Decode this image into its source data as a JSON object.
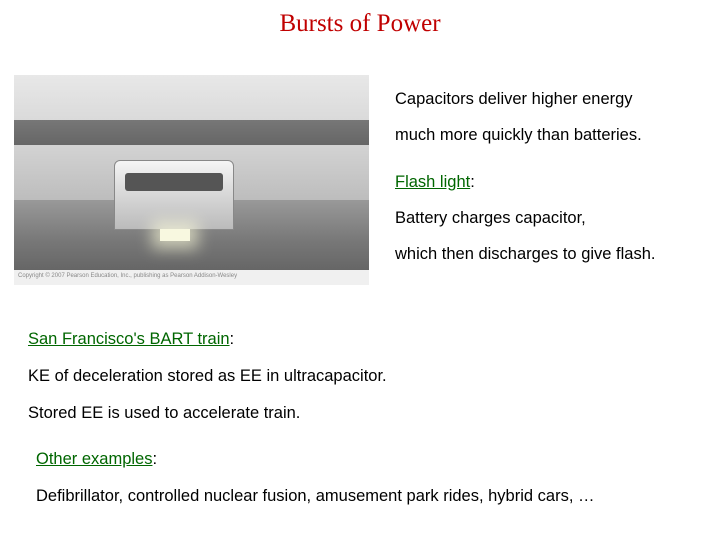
{
  "title": {
    "text": "Bursts  of  Power",
    "color": "#c00000"
  },
  "image": {
    "copyright": "Copyright © 2007 Pearson Education, Inc., publishing as Pearson Addison-Wesley"
  },
  "right": {
    "line1": "Capacitors deliver higher energy",
    "line2": "much more quickly than batteries.",
    "flash_label": "Flash light",
    "flash_color": "#006600",
    "line3": "Battery charges capacitor,",
    "line4": "which then discharges to give flash."
  },
  "bart": {
    "label": "San Francisco's BART train",
    "label_color": "#006600",
    "line1": "KE of deceleration stored as EE in ultracapacitor.",
    "line2": "Stored EE is used to accelerate train."
  },
  "other": {
    "label": "Other examples",
    "label_color": "#006600",
    "line1": "Defibrillator,  controlled nuclear fusion,  amusement park rides,  hybrid cars, …"
  }
}
